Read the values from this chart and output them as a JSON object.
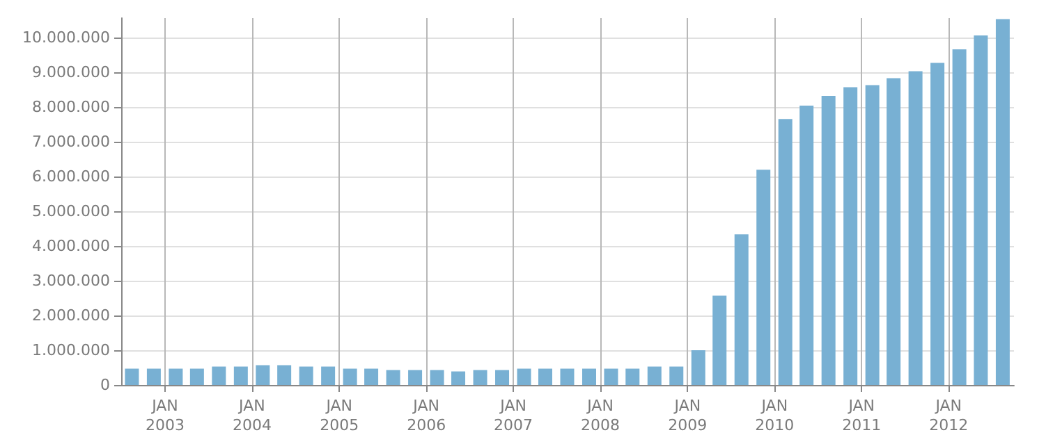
{
  "chart_data": {
    "type": "bar",
    "color": "#78b0d3",
    "x": [
      "2002-08-15",
      "2002-11-15",
      "2003-02-15",
      "2003-05-15",
      "2003-08-15",
      "2003-11-15",
      "2004-02-15",
      "2004-05-15",
      "2004-08-15",
      "2004-11-15",
      "2005-02-15",
      "2005-05-15",
      "2005-08-15",
      "2005-11-15",
      "2006-02-15",
      "2006-05-15",
      "2006-08-15",
      "2006-11-15",
      "2007-02-15",
      "2007-05-15",
      "2007-08-15",
      "2007-11-15",
      "2008-02-15",
      "2008-05-15",
      "2008-08-15",
      "2008-11-15",
      "2009-02-15",
      "2009-05-15",
      "2009-08-15",
      "2009-11-15",
      "2010-02-15",
      "2010-05-15",
      "2010-08-15",
      "2010-11-15",
      "2011-02-15",
      "2011-05-15",
      "2011-08-15",
      "2011-11-15",
      "2012-02-15",
      "2012-05-15",
      "2012-08-15"
    ],
    "values": [
      470000,
      470000,
      470000,
      470000,
      530000,
      530000,
      570000,
      570000,
      530000,
      530000,
      470000,
      470000,
      430000,
      430000,
      430000,
      390000,
      430000,
      430000,
      470000,
      470000,
      470000,
      470000,
      470000,
      470000,
      530000,
      530000,
      1000000,
      2570000,
      4340000,
      6200000,
      7660000,
      8050000,
      8330000,
      8580000,
      8640000,
      8840000,
      9040000,
      9280000,
      9670000,
      10070000,
      10540000
    ],
    "xlim": [
      "2002-07-01",
      "2012-10-01"
    ],
    "xticks": [
      {
        "value": "2003-01-01",
        "label": "JAN\n2003"
      },
      {
        "value": "2004-01-01",
        "label": "JAN\n2004"
      },
      {
        "value": "2005-01-01",
        "label": "JAN\n2005"
      },
      {
        "value": "2006-01-01",
        "label": "JAN\n2006"
      },
      {
        "value": "2007-01-01",
        "label": "JAN\n2007"
      },
      {
        "value": "2008-01-01",
        "label": "JAN\n2008"
      },
      {
        "value": "2009-01-01",
        "label": "JAN\n2009"
      },
      {
        "value": "2010-01-01",
        "label": "JAN\n2010"
      },
      {
        "value": "2011-01-01",
        "label": "JAN\n2011"
      },
      {
        "value": "2012-01-01",
        "label": "JAN\n2012"
      }
    ],
    "ylim": [
      0,
      10570000
    ],
    "yticks": [
      0,
      {
        "value": 1000000,
        "label": "1.000.000"
      },
      {
        "value": 2000000,
        "label": "2.000.000"
      },
      {
        "value": 3000000,
        "label": "3.000.000"
      },
      {
        "value": 4000000,
        "label": "4.000.000"
      },
      {
        "value": 5000000,
        "label": "5.000.000"
      },
      {
        "value": 6000000,
        "label": "6.000.000"
      },
      {
        "value": 7000000,
        "label": "7.000.000"
      },
      {
        "value": 8000000,
        "label": "8.000.000"
      },
      {
        "value": 9000000,
        "label": "9.000.000"
      },
      {
        "value": 10000000,
        "label": "10.000.000"
      }
    ],
    "grid": true
  }
}
